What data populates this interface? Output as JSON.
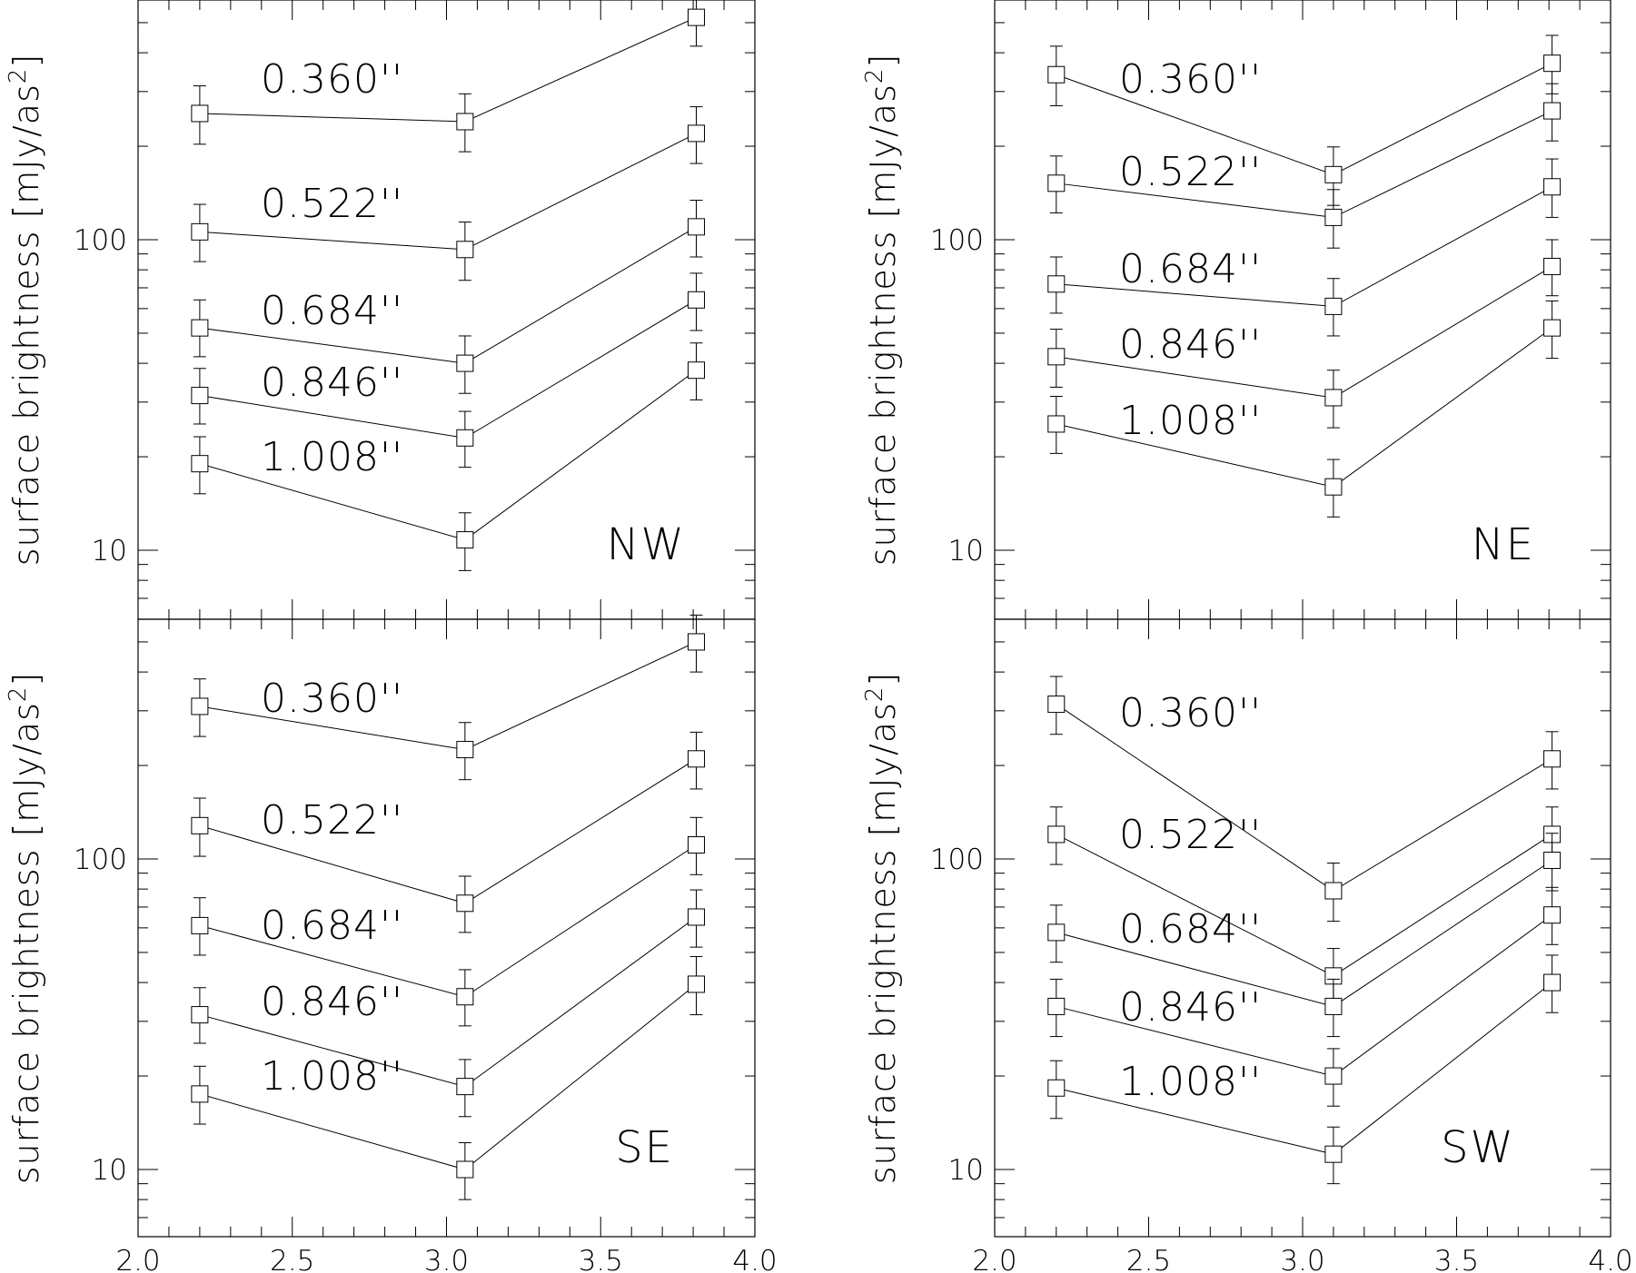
{
  "chart_data": [
    {
      "type": "line",
      "panel": "NW",
      "title": "",
      "xlabel": "",
      "ylabel_text": "surface brightness",
      "ylabel_unit": "mJy/as",
      "ylabel_exp": "2",
      "yscale": "log",
      "xlim": [
        2.0,
        4.0
      ],
      "ylim": [
        6,
        600
      ],
      "x_ticks": [],
      "y_ticks": [
        10,
        100
      ],
      "y_tick_labels": [
        "10",
        "100"
      ],
      "x": [
        2.2,
        3.06,
        3.81
      ],
      "series": [
        {
          "name": "0.360''",
          "values": [
            255,
            240,
            520
          ],
          "err_lo": [
            52,
            48,
            100
          ],
          "err_hi": [
            58,
            55,
            110
          ]
        },
        {
          "name": "0.522''",
          "values": [
            106,
            93,
            220
          ],
          "err_lo": [
            21,
            19,
            44
          ],
          "err_hi": [
            24,
            21,
            48
          ]
        },
        {
          "name": "0.684''",
          "values": [
            52,
            40,
            110
          ],
          "err_lo": [
            10,
            8,
            22
          ],
          "err_hi": [
            12,
            9,
            24
          ]
        },
        {
          "name": "0.846''",
          "values": [
            31.5,
            23,
            64
          ],
          "err_lo": [
            6,
            4.5,
            13
          ],
          "err_hi": [
            7,
            5,
            14
          ]
        },
        {
          "name": "1.008''",
          "values": [
            19,
            10.8,
            38
          ],
          "err_lo": [
            3.8,
            2.2,
            7.5
          ],
          "err_hi": [
            4.2,
            2.4,
            8.5
          ]
        }
      ]
    },
    {
      "type": "line",
      "panel": "NE",
      "title": "",
      "xlabel": "",
      "ylabel_text": "surface brightness",
      "ylabel_unit": "mJy/as",
      "ylabel_exp": "2",
      "yscale": "log",
      "xlim": [
        2.0,
        4.0
      ],
      "ylim": [
        6,
        600
      ],
      "x_ticks": [],
      "y_ticks": [
        10,
        100
      ],
      "y_tick_labels": [
        "10",
        "100"
      ],
      "x": [
        2.2,
        3.1,
        3.81
      ],
      "series": [
        {
          "name": "0.360''",
          "values": [
            340,
            162,
            370
          ],
          "err_lo": [
            70,
            33,
            75
          ],
          "err_hi": [
            80,
            37,
            85
          ]
        },
        {
          "name": "0.522''",
          "values": [
            152,
            118,
            260
          ],
          "err_lo": [
            30,
            24,
            52
          ],
          "err_hi": [
            34,
            27,
            58
          ]
        },
        {
          "name": "0.684''",
          "values": [
            72,
            61,
            148
          ],
          "err_lo": [
            14,
            12,
            30
          ],
          "err_hi": [
            16,
            14,
            34
          ]
        },
        {
          "name": "0.846''",
          "values": [
            42,
            31,
            82
          ],
          "err_lo": [
            8.5,
            6.2,
            16
          ],
          "err_hi": [
            9.5,
            7,
            18
          ]
        },
        {
          "name": "1.008''",
          "values": [
            25.5,
            16,
            52
          ],
          "err_lo": [
            5,
            3.2,
            10.5
          ],
          "err_hi": [
            5.8,
            3.6,
            11.5
          ]
        }
      ]
    },
    {
      "type": "line",
      "panel": "SE",
      "title": "",
      "xlabel": "",
      "ylabel_text": "surface brightness",
      "ylabel_unit": "mJy/as",
      "ylabel_exp": "2",
      "yscale": "log",
      "xlim": [
        2.0,
        4.0
      ],
      "ylim": [
        6,
        600
      ],
      "x_ticks": [
        2.0,
        2.5,
        3.0,
        3.5,
        4.0
      ],
      "x_tick_labels": [
        "2.0",
        "2.5",
        "3.0",
        "3.5",
        "4.0"
      ],
      "y_ticks": [
        10,
        100
      ],
      "y_tick_labels": [
        "10",
        "100"
      ],
      "x": [
        2.2,
        3.06,
        3.81
      ],
      "series": [
        {
          "name": "0.360''",
          "values": [
            310,
            225,
            500
          ],
          "err_lo": [
            62,
            45,
            100
          ],
          "err_hi": [
            70,
            50,
            110
          ]
        },
        {
          "name": "0.522''",
          "values": [
            128,
            72,
            210
          ],
          "err_lo": [
            26,
            14,
            42
          ],
          "err_hi": [
            29,
            16,
            46
          ]
        },
        {
          "name": "0.684''",
          "values": [
            61,
            36,
            111
          ],
          "err_lo": [
            12,
            7,
            22
          ],
          "err_hi": [
            14,
            8,
            25
          ]
        },
        {
          "name": "0.846''",
          "values": [
            31.5,
            18.5,
            65
          ],
          "err_lo": [
            6,
            3.7,
            13
          ],
          "err_hi": [
            7,
            4.1,
            14.5
          ]
        },
        {
          "name": "1.008''",
          "values": [
            17.5,
            10,
            39.5
          ],
          "err_lo": [
            3.5,
            2,
            8
          ],
          "err_hi": [
            4,
            2.2,
            9
          ]
        }
      ]
    },
    {
      "type": "line",
      "panel": "SW",
      "title": "",
      "xlabel": "",
      "ylabel_text": "surface brightness",
      "ylabel_unit": "mJy/as",
      "ylabel_exp": "2",
      "yscale": "log",
      "xlim": [
        2.0,
        4.0
      ],
      "ylim": [
        6,
        600
      ],
      "x_ticks": [
        2.0,
        2.5,
        3.0,
        3.5,
        4.0
      ],
      "x_tick_labels": [
        "2.0",
        "2.5",
        "3.0",
        "3.5",
        "4.0"
      ],
      "y_ticks": [
        10,
        100
      ],
      "y_tick_labels": [
        "10",
        "100"
      ],
      "x": [
        2.2,
        3.1,
        3.81
      ],
      "series": [
        {
          "name": "0.360''",
          "values": [
            315,
            79,
            210
          ],
          "err_lo": [
            63,
            16,
            42
          ],
          "err_hi": [
            72,
            18,
            47
          ]
        },
        {
          "name": "0.522''",
          "values": [
            120,
            42,
            120
          ],
          "err_lo": [
            24,
            8.5,
            24
          ],
          "err_hi": [
            27,
            9.5,
            27
          ]
        },
        {
          "name": "0.684''",
          "values": [
            58,
            33.5,
            99
          ],
          "err_lo": [
            11.5,
            6.7,
            20
          ],
          "err_hi": [
            13,
            7.5,
            22
          ]
        },
        {
          "name": "0.846''",
          "values": [
            33.5,
            20,
            66
          ],
          "err_lo": [
            6.7,
            4,
            13
          ],
          "err_hi": [
            7.5,
            4.5,
            15
          ]
        },
        {
          "name": "1.008''",
          "values": [
            18.3,
            11.2,
            40
          ],
          "err_lo": [
            3.7,
            2.2,
            8
          ],
          "err_hi": [
            4.1,
            2.5,
            9
          ]
        }
      ]
    }
  ]
}
